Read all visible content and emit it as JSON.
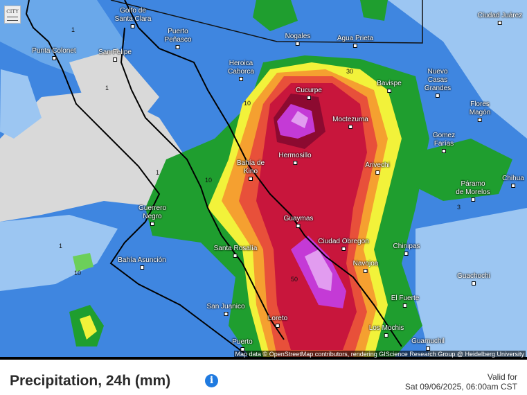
{
  "map": {
    "layer_button": "CITY",
    "attribution": "Map data © OpenStreetMap contributors, rendering GIScience Research Group @ Heidelberg University",
    "cities": [
      {
        "name": "Golfo de\nSanta Clara"
      },
      {
        "name": "Puerto\nPeñasco"
      },
      {
        "name": "Punta Colonet"
      },
      {
        "name": "San Felipe"
      },
      {
        "name": "Nogales"
      },
      {
        "name": "Agua Prieta"
      },
      {
        "name": "Ciudad Juárez"
      },
      {
        "name": "Heroica\nCaborca"
      },
      {
        "name": "Cucurpe"
      },
      {
        "name": "Bavispe"
      },
      {
        "name": "Nuevo\nCasas\nGrandes"
      },
      {
        "name": "Flores\nMagón"
      },
      {
        "name": "Moctezuma"
      },
      {
        "name": "Gomez\nFarías"
      },
      {
        "name": "Hermosillo"
      },
      {
        "name": "Arivechi"
      },
      {
        "name": "Bahía de\nKino"
      },
      {
        "name": "Chihua"
      },
      {
        "name": "Páramo\nde Morelos"
      },
      {
        "name": "Guerrero\nNegro"
      },
      {
        "name": "Guaymas"
      },
      {
        "name": "Ciudad Obregon"
      },
      {
        "name": "Chinipas"
      },
      {
        "name": "Santa Rosalía"
      },
      {
        "name": "Navojoa"
      },
      {
        "name": "Bahía Asunción"
      },
      {
        "name": "Guachochi"
      },
      {
        "name": "El Fuerte"
      },
      {
        "name": "San Juanico"
      },
      {
        "name": "Loreto"
      },
      {
        "name": "Los Mochis"
      },
      {
        "name": "Puerto"
      },
      {
        "name": "Guamuchil"
      }
    ],
    "contour_labels": [
      "1",
      "1",
      "1",
      "10",
      "10",
      "30",
      "50",
      "1",
      "3",
      "10"
    ],
    "colors": {
      "none": "#d9d9d9",
      "light": "#9cc6f2",
      "low": "#3f86e0",
      "mid": "#1a4fb8",
      "green_light": "#6ccf5a",
      "green": "#1f9e2f",
      "yellow": "#f2f23a",
      "orange": "#f5a030",
      "red_orange": "#e8503a",
      "red": "#c8163c",
      "dark_red": "#8c0a30",
      "magenta": "#c43ad6",
      "violet": "#e29cf0"
    }
  },
  "footer": {
    "title": "Precipitation, 24h (mm)",
    "info_icon": "i",
    "valid_label": "Valid for",
    "valid_time": "Sat 09/06/2025, 06:00am CST"
  }
}
